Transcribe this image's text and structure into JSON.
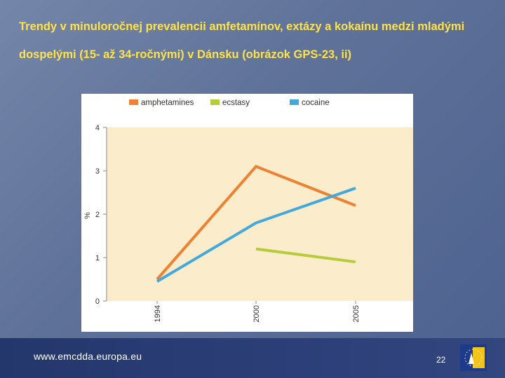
{
  "slide": {
    "title": "Trendy v minuloročnej prevalencii amfetamínov, extázy a kokaínu medzi mladými dospelými (15- až 34-ročnými) v Dánsku (obrázok GPS-23, ii)",
    "footer_url": "www.emcdda.europa.eu",
    "page_number": "22"
  },
  "colors": {
    "plot_bg": "#fbeccb",
    "amphetamines": "#ee8133",
    "ecstasy": "#b7cc3b",
    "cocaine": "#43a8da"
  },
  "chart_data": {
    "type": "line",
    "title": "",
    "xlabel": "",
    "ylabel": "%",
    "x": [
      "1994",
      "2000",
      "2005"
    ],
    "ylim": [
      0,
      4
    ],
    "yticks": [
      0,
      1,
      2,
      3,
      4
    ],
    "legend_position": "top",
    "series": [
      {
        "name": "amphetamines",
        "color": "#ee8133",
        "values": [
          0.5,
          3.1,
          2.2
        ]
      },
      {
        "name": "ecstasy",
        "color": "#b7cc3b",
        "values": [
          null,
          1.2,
          0.9
        ]
      },
      {
        "name": "cocaine",
        "color": "#43a8da",
        "values": [
          0.45,
          1.8,
          2.6
        ]
      }
    ]
  }
}
